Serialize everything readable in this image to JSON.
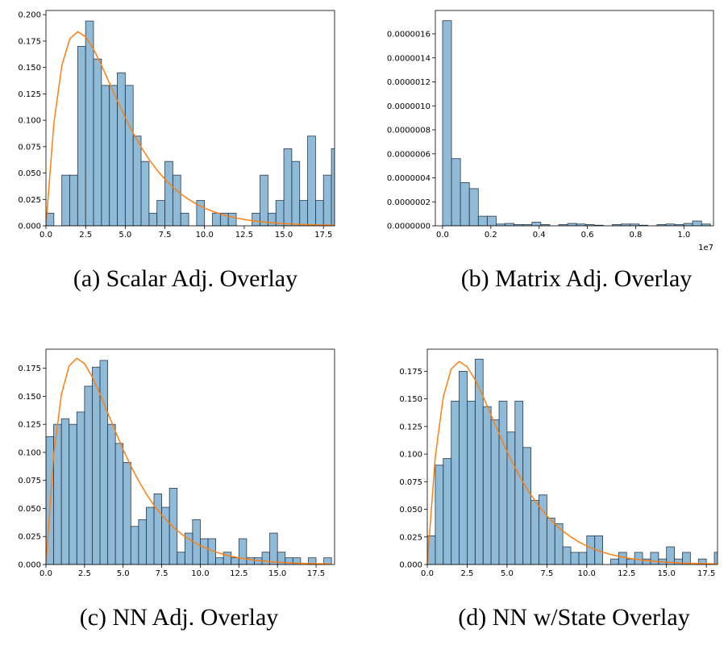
{
  "chart_data": [
    {
      "type": "histogram",
      "caption": "(a) Scalar Adj. Overlay",
      "color": "#1f77b4",
      "bins": [
        0,
        0.5,
        1,
        1.5,
        2,
        2.5,
        3,
        3.5,
        4,
        4.5,
        5,
        5.5,
        6,
        6.5,
        7,
        7.5,
        8,
        8.5,
        9,
        9.5,
        10,
        10.5,
        11,
        11.5,
        12,
        12.5,
        13,
        13.5,
        14,
        14.5,
        15,
        15.5,
        16,
        16.5,
        17,
        17.5,
        18,
        18.5
      ],
      "values": [
        0.012,
        0,
        0.048,
        0.048,
        0.17,
        0.194,
        0.158,
        0.133,
        0.133,
        0.145,
        0.133,
        0.085,
        0.061,
        0.012,
        0.024,
        0.061,
        0.048,
        0.012,
        0,
        0.024,
        0,
        0.012,
        0.012,
        0.012,
        0,
        0,
        0.012,
        0.048,
        0.012,
        0.024,
        0.073,
        0.061,
        0.024,
        0.085,
        0.024,
        0.048,
        0.073,
        0.012
      ],
      "curve": {
        "color": "#ff7f0e",
        "x": [
          0,
          0.5,
          1,
          1.5,
          2,
          2.5,
          3,
          3.5,
          4,
          4.5,
          5,
          5.5,
          6,
          6.5,
          7,
          7.5,
          8,
          8.5,
          9,
          9.5,
          10,
          10.5,
          11,
          11.5,
          12,
          12.5,
          13,
          13.5,
          14,
          14.5,
          15,
          15.5,
          16,
          16.5,
          17,
          17.5,
          18,
          18.5
        ],
        "y": [
          0,
          0.0974,
          0.1516,
          0.1771,
          0.1839,
          0.1791,
          0.1673,
          0.1521,
          0.1353,
          0.1186,
          0.1026,
          0.0879,
          0.0747,
          0.063,
          0.0528,
          0.0441,
          0.0366,
          0.0303,
          0.025,
          0.0205,
          0.0168,
          0.0138,
          0.0112,
          0.0091,
          0.0074,
          0.006,
          0.0049,
          0.0039,
          0.0032,
          0.0026,
          0.0021,
          0.0017,
          0.0013,
          0.0011,
          0.0009,
          0.0007,
          0.0006,
          0.0004
        ]
      },
      "xlim": [
        0,
        18.2
      ],
      "ylim": [
        0,
        0.204
      ],
      "xticks": [
        {
          "value": 0,
          "label": "0.0"
        },
        2.5,
        {
          "value": 5,
          "label": "5.0"
        },
        7.5,
        {
          "value": 10,
          "label": "10.0"
        },
        12.5,
        {
          "value": 15,
          "label": "15.0"
        },
        17.5
      ],
      "yticks": [
        {
          "value": 0,
          "label": "0.000"
        },
        0.025,
        {
          "value": 0.05,
          "label": "0.050"
        },
        0.075,
        {
          "value": 0.1,
          "label": "0.100"
        },
        0.125,
        {
          "value": 0.15,
          "label": "0.150"
        },
        0.175,
        {
          "value": 0.2,
          "label": "0.200"
        }
      ]
    },
    {
      "type": "histogram",
      "caption": "(b) Matrix Adj. Overlay",
      "color": "#1f77b4",
      "x_offset_label": "1e7",
      "bins": [
        0,
        0.037,
        0.074,
        0.111,
        0.148,
        0.185,
        0.222,
        0.259,
        0.296,
        0.333,
        0.37,
        0.407,
        0.444,
        0.481,
        0.518,
        0.555,
        0.592,
        0.629,
        0.666,
        0.703,
        0.74,
        0.777,
        0.814,
        0.851,
        0.888,
        0.925,
        0.962,
        0.999,
        1.036,
        1.073,
        1.11
      ],
      "values": [
        1.71e-06,
        5.6e-07,
        3.6e-07,
        3.1e-07,
        8e-08,
        8e-08,
        1.5e-08,
        2e-08,
        1e-08,
        1e-08,
        3e-08,
        1e-08,
        0,
        1e-08,
        2e-08,
        1.5e-08,
        1e-08,
        5e-09,
        0,
        1e-08,
        1.5e-08,
        1.5e-08,
        5e-09,
        0,
        1e-08,
        1.5e-08,
        1e-08,
        2e-08,
        4e-08,
        1.5e-08
      ],
      "xlim": [
        -0.03,
        1.1225
      ],
      "ylim": [
        0,
        1.795e-06
      ],
      "xticks": [
        {
          "value": 0,
          "label": "0.0"
        },
        0.2,
        0.4,
        0.6,
        0.8,
        {
          "value": 1,
          "label": "1.0"
        }
      ],
      "yticks": [
        {
          "value": 0,
          "label": "0.0000000"
        },
        {
          "value": 2e-07,
          "label": "0.0000002"
        },
        {
          "value": 4e-07,
          "label": "0.0000004"
        },
        {
          "value": 6e-07,
          "label": "0.0000006"
        },
        {
          "value": 8e-07,
          "label": "0.0000008"
        },
        {
          "value": 1e-06,
          "label": "0.0000010"
        },
        {
          "value": 1.2e-06,
          "label": "0.0000012"
        },
        {
          "value": 1.4e-06,
          "label": "0.0000014"
        },
        {
          "value": 1.6e-06,
          "label": "0.0000016"
        }
      ]
    },
    {
      "type": "histogram",
      "caption": "(c) NN Adj. Overlay",
      "color": "#1f77b4",
      "bins": [
        0,
        0.5,
        1,
        1.5,
        2,
        2.5,
        3,
        3.5,
        4,
        4.5,
        5,
        5.5,
        6,
        6.5,
        7,
        7.5,
        8,
        8.5,
        9,
        9.5,
        10,
        10.5,
        11,
        11.5,
        12,
        12.5,
        13,
        13.5,
        14,
        14.5,
        15,
        15.5,
        16,
        16.5,
        17,
        17.5,
        18,
        18.5
      ],
      "values": [
        0.114,
        0.125,
        0.13,
        0.125,
        0.136,
        0.159,
        0.176,
        0.182,
        0.125,
        0.108,
        0.091,
        0.034,
        0.04,
        0.051,
        0.063,
        0.051,
        0.068,
        0.011,
        0.028,
        0.04,
        0.023,
        0.023,
        0.006,
        0.011,
        0.006,
        0.023,
        0.006,
        0.006,
        0.011,
        0.028,
        0.011,
        0.006,
        0.006,
        0,
        0.006,
        0,
        0.006
      ],
      "curve": {
        "color": "#ff7f0e",
        "x": [
          0,
          0.5,
          1,
          1.5,
          2,
          2.5,
          3,
          3.5,
          4,
          4.5,
          5,
          5.5,
          6,
          6.5,
          7,
          7.5,
          8,
          8.5,
          9,
          9.5,
          10,
          10.5,
          11,
          11.5,
          12,
          12.5,
          13,
          13.5,
          14,
          14.5,
          15,
          15.5,
          16,
          16.5,
          17,
          17.5,
          18,
          18.5
        ],
        "y": [
          0,
          0.0974,
          0.1516,
          0.1771,
          0.1839,
          0.1791,
          0.1673,
          0.1521,
          0.1353,
          0.1186,
          0.1026,
          0.0879,
          0.0747,
          0.063,
          0.0528,
          0.0441,
          0.0366,
          0.0303,
          0.025,
          0.0205,
          0.0168,
          0.0138,
          0.0112,
          0.0091,
          0.0074,
          0.006,
          0.0049,
          0.0039,
          0.0032,
          0.0026,
          0.0021,
          0.0017,
          0.0013,
          0.0011,
          0.0009,
          0.0007,
          0.0006,
          0.0004
        ]
      },
      "xlim": [
        0,
        18.7
      ],
      "ylim": [
        0,
        0.192
      ],
      "xticks": [
        {
          "value": 0,
          "label": "0.0"
        },
        2.5,
        {
          "value": 5,
          "label": "5.0"
        },
        7.5,
        {
          "value": 10,
          "label": "10.0"
        },
        12.5,
        {
          "value": 15,
          "label": "15.0"
        },
        17.5
      ],
      "yticks": [
        {
          "value": 0,
          "label": "0.000"
        },
        0.025,
        {
          "value": 0.05,
          "label": "0.050"
        },
        0.075,
        {
          "value": 0.1,
          "label": "0.100"
        },
        0.125,
        {
          "value": 0.15,
          "label": "0.150"
        },
        0.175
      ]
    },
    {
      "type": "histogram",
      "caption": "(d) NN w/State Overlay",
      "color": "#1f77b4",
      "bins": [
        0,
        0.5,
        1,
        1.5,
        2,
        2.5,
        3,
        3.5,
        4,
        4.5,
        5,
        5.5,
        6,
        6.5,
        7,
        7.5,
        8,
        8.5,
        9,
        9.5,
        10,
        10.5,
        11,
        11.5,
        12,
        12.5,
        13,
        13.5,
        14,
        14.5,
        15,
        15.5,
        16,
        16.5,
        17,
        17.5,
        18,
        18.5
      ],
      "values": [
        0.026,
        0.09,
        0.096,
        0.148,
        0.175,
        0.148,
        0.186,
        0.143,
        0.131,
        0.148,
        0.12,
        0.148,
        0.106,
        0.058,
        0.063,
        0.042,
        0.037,
        0.016,
        0.011,
        0.011,
        0.026,
        0.026,
        0,
        0.005,
        0.011,
        0.005,
        0.011,
        0.005,
        0.011,
        0.005,
        0.016,
        0.005,
        0.011,
        0,
        0.005,
        0,
        0.011
      ],
      "curve": {
        "color": "#ff7f0e",
        "x": [
          0,
          0.5,
          1,
          1.5,
          2,
          2.5,
          3,
          3.5,
          4,
          4.5,
          5,
          5.5,
          6,
          6.5,
          7,
          7.5,
          8,
          8.5,
          9,
          9.5,
          10,
          10.5,
          11,
          11.5,
          12,
          12.5,
          13,
          13.5,
          14,
          14.5,
          15,
          15.5,
          16,
          16.5,
          17,
          17.5,
          18,
          18.5
        ],
        "y": [
          0,
          0.0974,
          0.1516,
          0.1771,
          0.1839,
          0.1791,
          0.1673,
          0.1521,
          0.1353,
          0.1186,
          0.1026,
          0.0879,
          0.0747,
          0.063,
          0.0528,
          0.0441,
          0.0366,
          0.0303,
          0.025,
          0.0205,
          0.0168,
          0.0138,
          0.0112,
          0.0091,
          0.0074,
          0.006,
          0.0049,
          0.0039,
          0.0032,
          0.0026,
          0.0021,
          0.0017,
          0.0013,
          0.0011,
          0.0009,
          0.0007,
          0.0006,
          0.0004
        ]
      },
      "xlim": [
        0,
        18.2
      ],
      "ylim": [
        0,
        0.195
      ],
      "xticks": [
        {
          "value": 0,
          "label": "0.0"
        },
        2.5,
        {
          "value": 5,
          "label": "5.0"
        },
        7.5,
        {
          "value": 10,
          "label": "10.0"
        },
        12.5,
        {
          "value": 15,
          "label": "15.0"
        },
        17.5
      ],
      "yticks": [
        {
          "value": 0,
          "label": "0.000"
        },
        0.025,
        {
          "value": 0.05,
          "label": "0.050"
        },
        0.075,
        {
          "value": 0.1,
          "label": "0.100"
        },
        0.125,
        {
          "value": 0.15,
          "label": "0.150"
        },
        0.175
      ]
    }
  ]
}
